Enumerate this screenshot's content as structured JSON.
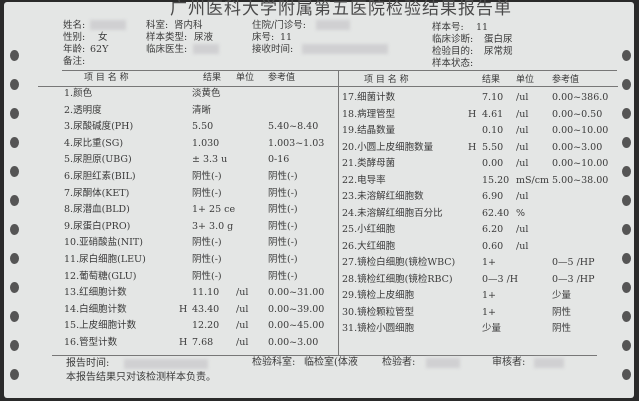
{
  "title": "广州医科大学附属第五医院检验结果报告单",
  "header": {
    "name_label": "姓名:",
    "gender_label": "性别:",
    "gender": "女",
    "age_label": "年龄:",
    "age": "62Y",
    "remark_label": "备注:",
    "dept_label": "科室:",
    "dept": "肾内科",
    "sample_type_label": "样本类型:",
    "sample_type": "尿液",
    "doctor_label": "临床医生:",
    "patient_no_label": "住院/门诊号:",
    "bed_label": "床号:",
    "bed": "11",
    "received_label": "接收时间:",
    "sample_no_label": "样本号:",
    "sample_no": "11",
    "diagnosis_label": "临床诊断:",
    "diagnosis": "蛋白尿",
    "purpose_label": "检验目的:",
    "purpose": "尿常规",
    "sample_status_label": "样本状态:"
  },
  "columns": {
    "name": "项 目 名 称",
    "result": "结果",
    "unit": "单位",
    "ref": "参考值"
  },
  "left_rows": [
    {
      "name": "1.颜色",
      "flag": "",
      "result": "淡黄色",
      "unit": "",
      "ref": ""
    },
    {
      "name": "2.透明度",
      "flag": "",
      "result": "清晰",
      "unit": "",
      "ref": ""
    },
    {
      "name": "3.尿酸碱度(PH)",
      "flag": "",
      "result": "5.50",
      "unit": "",
      "ref": "5.40~8.40"
    },
    {
      "name": "4.尿比重(SG)",
      "flag": "",
      "result": "1.030",
      "unit": "",
      "ref": "1.003~1.03"
    },
    {
      "name": "5.尿胆原(UBG)",
      "flag": "",
      "result": "± 3.3 u",
      "unit": "",
      "ref": "0-16"
    },
    {
      "name": "6.尿胆红素(BIL)",
      "flag": "",
      "result": "阴性(-)",
      "unit": "",
      "ref": "阴性(-)"
    },
    {
      "name": "7.尿酮体(KET)",
      "flag": "",
      "result": "阴性(-)",
      "unit": "",
      "ref": "阴性(-)"
    },
    {
      "name": "8.尿潜血(BLD)",
      "flag": "",
      "result": "1+ 25 ce",
      "unit": "",
      "ref": "阴性(-)"
    },
    {
      "name": "9.尿蛋白(PRO)",
      "flag": "",
      "result": "3+ 3.0 g",
      "unit": "",
      "ref": "阴性(-)"
    },
    {
      "name": "10.亚硝酸盐(NIT)",
      "flag": "",
      "result": "阴性(-)",
      "unit": "",
      "ref": "阴性(-)"
    },
    {
      "name": "11.尿白细胞(LEU)",
      "flag": "",
      "result": "阴性(-)",
      "unit": "",
      "ref": "阴性(-)"
    },
    {
      "name": "12.葡萄糖(GLU)",
      "flag": "",
      "result": "阴性(-)",
      "unit": "",
      "ref": "阴性(-)"
    },
    {
      "name": "13.红细胞计数",
      "flag": "",
      "result": "11.10",
      "unit": "/ul",
      "ref": "0.00~31.00"
    },
    {
      "name": "14.白细胞计数",
      "flag": "H",
      "result": "43.40",
      "unit": "/ul",
      "ref": "0.00~39.00"
    },
    {
      "name": "15.上皮细胞计数",
      "flag": "",
      "result": "12.20",
      "unit": "/ul",
      "ref": "0.00~45.00"
    },
    {
      "name": "16.管型计数",
      "flag": "H",
      "result": "7.68",
      "unit": "/ul",
      "ref": "0.00~3.00"
    }
  ],
  "right_rows": [
    {
      "name": "17.细菌计数",
      "flag": "",
      "result": "7.10",
      "unit": "/ul",
      "ref": "0.00~386.0"
    },
    {
      "name": "18.病理管型",
      "flag": "H",
      "result": "4.61",
      "unit": "/ul",
      "ref": "0.00~0.50"
    },
    {
      "name": "19.结晶数量",
      "flag": "",
      "result": "0.10",
      "unit": "/ul",
      "ref": "0.00~10.00"
    },
    {
      "name": "20.小圆上皮细胞数量",
      "flag": "H",
      "result": "5.50",
      "unit": "/ul",
      "ref": "0.00~3.00"
    },
    {
      "name": "21.类酵母菌",
      "flag": "",
      "result": "0.00",
      "unit": "/ul",
      "ref": "0.00~10.00"
    },
    {
      "name": "22.电导率",
      "flag": "",
      "result": "15.20",
      "unit": "mS/cm",
      "ref": "5.00~38.00"
    },
    {
      "name": "23.未溶解红细胞数",
      "flag": "",
      "result": "6.90",
      "unit": "/ul",
      "ref": ""
    },
    {
      "name": "24.未溶解红细胞百分比",
      "flag": "",
      "result": "62.40",
      "unit": "%",
      "ref": ""
    },
    {
      "name": "25.小红细胞",
      "flag": "",
      "result": "6.20",
      "unit": "/ul",
      "ref": ""
    },
    {
      "name": "26.大红细胞",
      "flag": "",
      "result": "0.60",
      "unit": "/ul",
      "ref": ""
    },
    {
      "name": "27.镜检白细胞(镜检WBC)",
      "flag": "",
      "result": "1+",
      "unit": "",
      "ref": "0—5 /HP"
    },
    {
      "name": "28.镜检红细胞(镜检RBC)",
      "flag": "",
      "result": "0—3 /H",
      "unit": "",
      "ref": "0—3 /HP"
    },
    {
      "name": "29.镜检上皮细胞",
      "flag": "",
      "result": "1+",
      "unit": "",
      "ref": "少量"
    },
    {
      "name": "30.镜检颗粒管型",
      "flag": "",
      "result": "1+",
      "unit": "",
      "ref": "阴性"
    },
    {
      "name": "31.镜检小圆细胞",
      "flag": "",
      "result": "少量",
      "unit": "",
      "ref": "阴性"
    }
  ],
  "footer": {
    "report_time_label": "报告时间:",
    "lab_label": "检验科室:",
    "lab": "临检室(体液",
    "tester_label": "检验者:",
    "reviewer_label": "审核者:",
    "disclaimer": "本报告结果只对该检测样本负责。"
  }
}
